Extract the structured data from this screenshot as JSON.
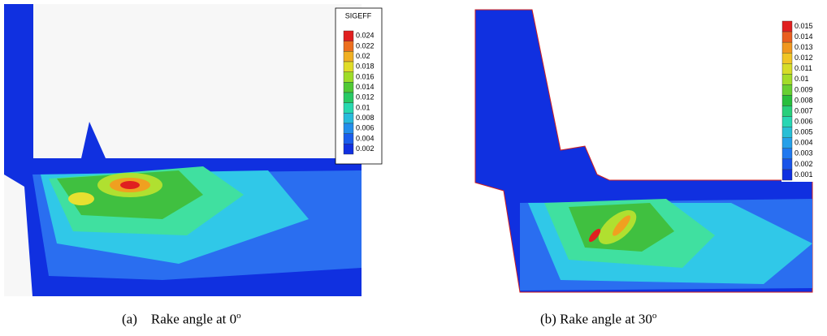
{
  "panels": [
    {
      "legend": {
        "title": "SIGEFF",
        "levels": [
          "0.024",
          "0.022",
          "0.02",
          "0.018",
          "0.016",
          "0.014",
          "0.012",
          "0.01",
          "0.008",
          "0.006",
          "0.004",
          "0.002"
        ]
      },
      "caption": {
        "label": "(a)",
        "text": "Rake angle at 0",
        "sup": "o"
      }
    },
    {
      "legend": {
        "levels": [
          "0.015",
          "0.014",
          "0.013",
          "0.012",
          "0.011",
          "0.01",
          "0.009",
          "0.008",
          "0.007",
          "0.006",
          "0.005",
          "0.004",
          "0.003",
          "0.002",
          "0.001"
        ]
      },
      "caption": {
        "label": "(b)",
        "text": "Rake angle at 30",
        "sup": "o"
      }
    }
  ]
}
